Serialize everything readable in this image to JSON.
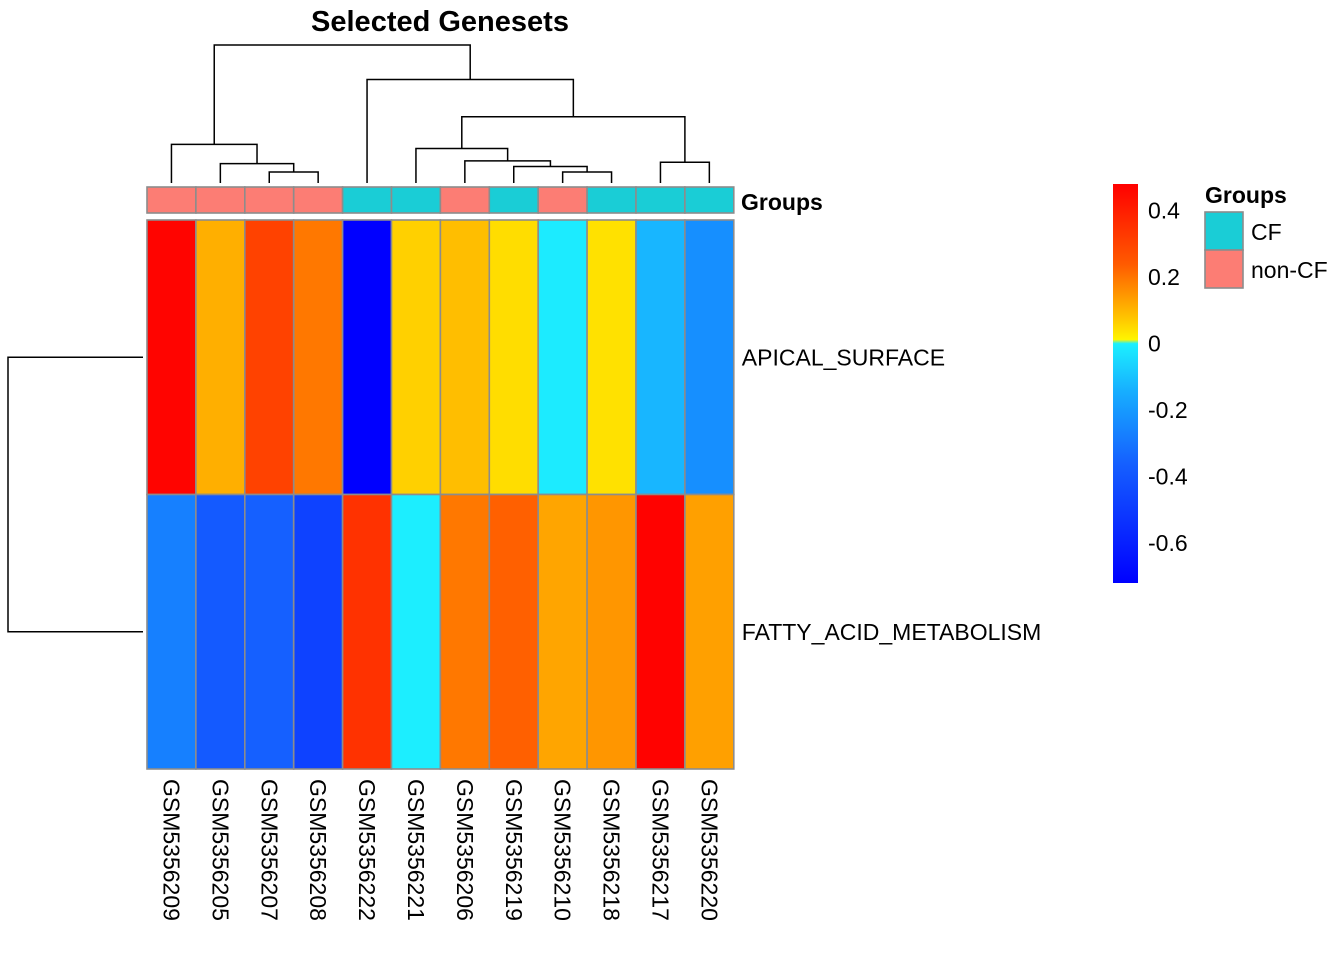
{
  "chart_data": {
    "type": "heatmap",
    "title": "Selected Genesets",
    "rows": [
      "APICAL_SURFACE",
      "FATTY_ACID_METABOLISM"
    ],
    "columns": [
      "GSM5356209",
      "GSM5356205",
      "GSM5356207",
      "GSM5356208",
      "GSM5356222",
      "GSM5356221",
      "GSM5356206",
      "GSM5356219",
      "GSM5356210",
      "GSM5356218",
      "GSM5356217",
      "GSM5356220"
    ],
    "values": [
      [
        0.45,
        0.15,
        0.33,
        0.25,
        -0.72,
        0.08,
        0.12,
        0.05,
        -0.02,
        0.04,
        -0.18,
        -0.28
      ],
      [
        -0.32,
        -0.42,
        -0.4,
        -0.5,
        0.35,
        -0.01,
        0.25,
        0.29,
        0.17,
        0.2,
        0.46,
        0.18
      ]
    ],
    "annotation": {
      "label": "Groups",
      "values": [
        "non-CF",
        "non-CF",
        "non-CF",
        "non-CF",
        "CF",
        "CF",
        "non-CF",
        "CF",
        "non-CF",
        "CF",
        "CF",
        "CF"
      ]
    },
    "legend": {
      "title": "Groups",
      "items": [
        {
          "label": "CF",
          "color": "#1ACDD6"
        },
        {
          "label": "non-CF",
          "color": "#FC7D74"
        }
      ]
    },
    "colorbar": {
      "min": -0.72,
      "max": 0.48,
      "ticks": [
        0.4,
        0.2,
        0,
        -0.2,
        -0.4,
        -0.6
      ],
      "tick_labels": [
        "0.4",
        "0.2",
        "0",
        "-0.2",
        "-0.4",
        "-0.6"
      ]
    },
    "col_dendrogram": [
      [
        10,
        11,
        0.15
      ],
      [
        8,
        9,
        0.08
      ],
      [
        7,
        13,
        0.12
      ],
      [
        6,
        14,
        0.16
      ],
      [
        5,
        15,
        0.25
      ],
      [
        16,
        12,
        0.48
      ],
      [
        4,
        17,
        0.75
      ],
      [
        2,
        3,
        0.08
      ],
      [
        1,
        19,
        0.14
      ],
      [
        0,
        20,
        0.28
      ],
      [
        21,
        18,
        1.0
      ]
    ],
    "row_dendrogram": [
      [
        0,
        1,
        1.0
      ]
    ]
  }
}
